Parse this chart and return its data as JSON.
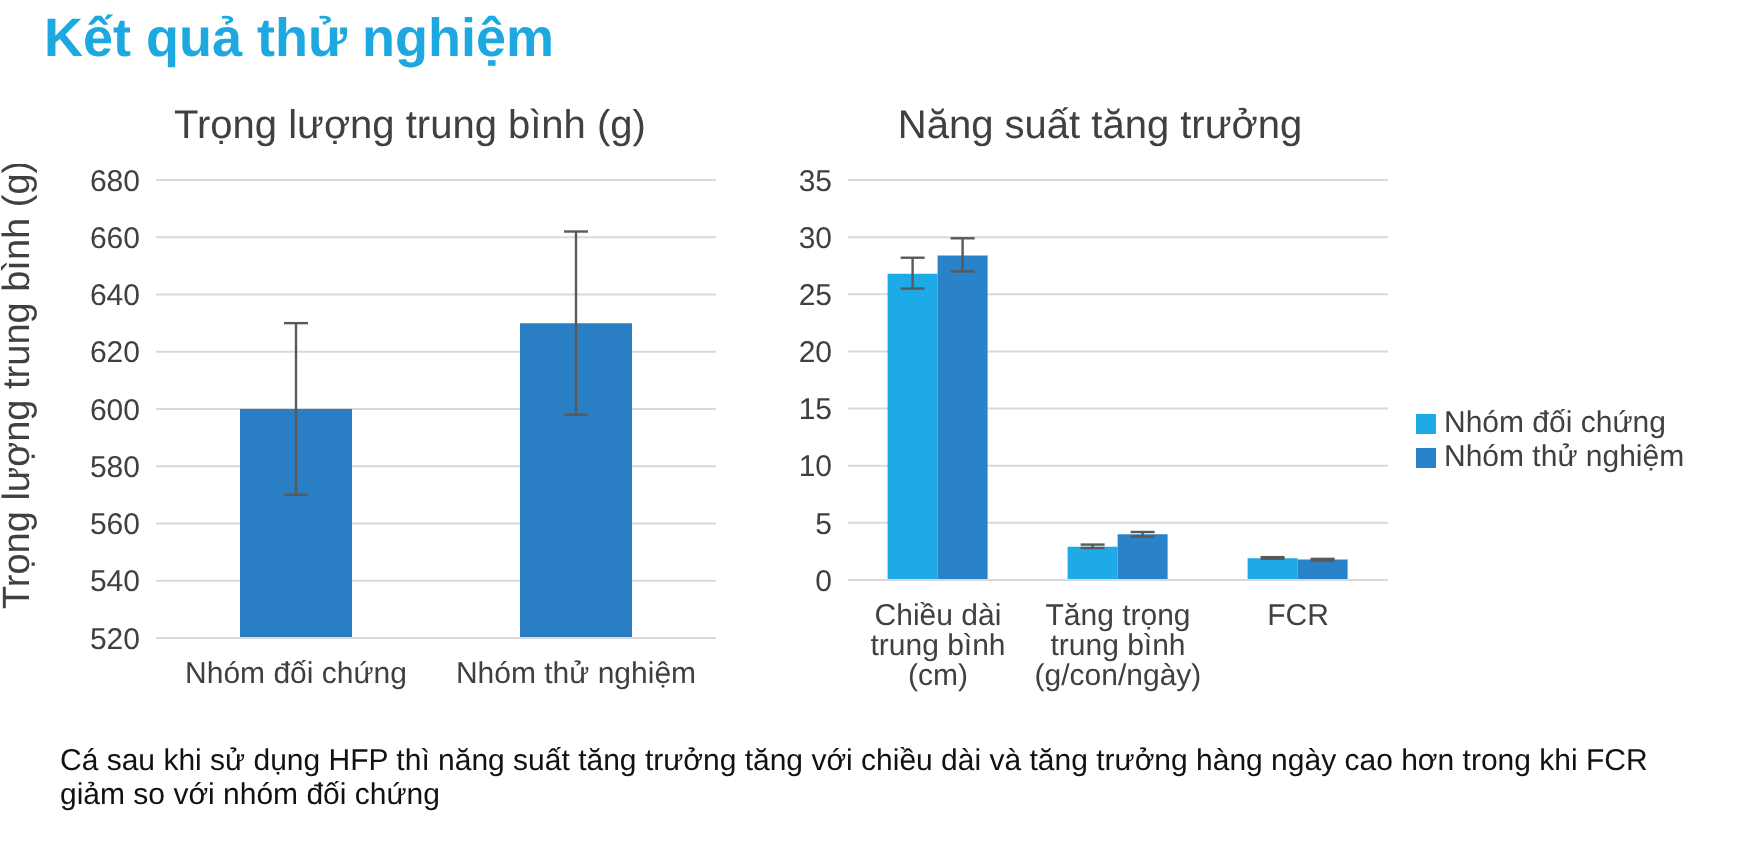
{
  "chart_data": [
    {
      "type": "bar",
      "title": "Trọng lượng trung bình (g)",
      "ylabel": "Trọng lượng trung bình (g)",
      "annotations": [
        "Kết quả thử nghiệm"
      ],
      "categories": [
        "Nhóm đối chứng",
        "Nhóm thử nghiệm"
      ],
      "values": [
        600,
        630
      ],
      "errors": [
        [
          570,
          630
        ],
        [
          598,
          662
        ]
      ],
      "color": "#2a7fc4",
      "ylim": [
        520,
        680
      ],
      "yticks": [
        520,
        540,
        560,
        580,
        600,
        620,
        640,
        660,
        680
      ],
      "grid": "y",
      "legend": false
    },
    {
      "type": "bar",
      "title": "Năng suất tăng trưởng",
      "annotations": [
        "Cá sau khi sử dụng HFP thì năng suất tăng trưởng tăng với chiều dài và tăng trưởng hàng ngày cao hơn trong khi FCR giảm so với nhóm đối chứng"
      ],
      "categories": [
        "Chiều dài trung bình (cm)",
        "Tăng trọng trung bình (g/con/ngày)",
        "FCR"
      ],
      "series": [
        {
          "name": "Nhóm đối chứng",
          "color": "#1eaae6",
          "values": [
            26.8,
            2.9,
            1.9
          ],
          "errors": [
            [
              25.5,
              28.2
            ],
            [
              2.8,
              3.1
            ],
            [
              1.85,
              2.0
            ]
          ]
        },
        {
          "name": "Nhóm thử nghiệm",
          "color": "#2a82c8",
          "values": [
            28.4,
            4.0,
            1.8
          ],
          "errors": [
            [
              27,
              29.9
            ],
            [
              3.8,
              4.2
            ],
            [
              1.7,
              1.85
            ]
          ]
        }
      ],
      "ylim": [
        0,
        35
      ],
      "yticks": [
        0,
        5,
        10,
        15,
        20,
        25,
        30,
        35
      ],
      "grid": "y",
      "legend": "right"
    }
  ]
}
